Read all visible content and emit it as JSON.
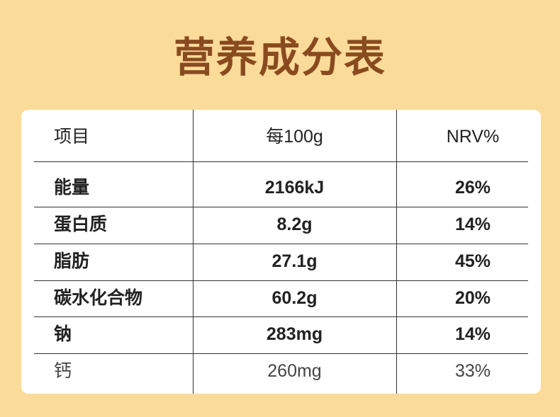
{
  "title": "营养成分表",
  "table": {
    "header": [
      "项目",
      "每100g",
      "NRV%"
    ],
    "rows": [
      [
        "能量",
        "2166kJ",
        "26%"
      ],
      [
        "蛋白质",
        "8.2g",
        "14%"
      ],
      [
        "脂肪",
        "27.1g",
        "45%"
      ],
      [
        "碳水化合物",
        "60.2g",
        "20%"
      ],
      [
        "钠",
        "283mg",
        "14%"
      ],
      [
        "钙",
        "260mg",
        "33%"
      ]
    ]
  }
}
